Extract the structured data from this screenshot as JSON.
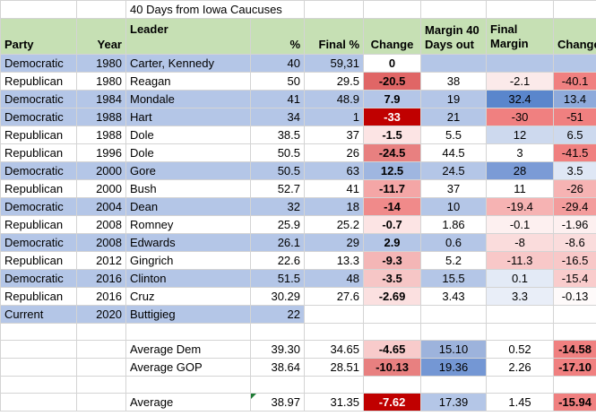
{
  "title": "40 Days from Iowa Caucuses",
  "headers": {
    "party": "Party",
    "year": "Year",
    "leader": "Leader",
    "pct": "%",
    "final_pct": "Final %",
    "change": "Change",
    "margin40": "Margin 40 Days out",
    "final_margin": "Final Margin",
    "change2": "Change"
  },
  "rows": [
    {
      "party": "Democratic",
      "year": "1980",
      "leader": "Carter, Kennedy",
      "pct": "40",
      "final_pct": "59,31",
      "change": "0",
      "margin40": "",
      "final_margin": "",
      "change2": ""
    },
    {
      "party": "Republican",
      "year": "1980",
      "leader": "Reagan",
      "pct": "50",
      "final_pct": "29.5",
      "change": "-20.5",
      "margin40": "38",
      "final_margin": "-2.1",
      "change2": "-40.1"
    },
    {
      "party": "Democratic",
      "year": "1984",
      "leader": "Mondale",
      "pct": "41",
      "final_pct": "48.9",
      "change": "7.9",
      "margin40": "19",
      "final_margin": "32.4",
      "change2": "13.4"
    },
    {
      "party": "Democratic",
      "year": "1988",
      "leader": "Hart",
      "pct": "34",
      "final_pct": "1",
      "change": "-33",
      "margin40": "21",
      "final_margin": "-30",
      "change2": "-51"
    },
    {
      "party": "Republican",
      "year": "1988",
      "leader": "Dole",
      "pct": "38.5",
      "final_pct": "37",
      "change": "-1.5",
      "margin40": "5.5",
      "final_margin": "12",
      "change2": "6.5"
    },
    {
      "party": "Republican",
      "year": "1996",
      "leader": "Dole",
      "pct": "50.5",
      "final_pct": "26",
      "change": "-24.5",
      "margin40": "44.5",
      "final_margin": "3",
      "change2": "-41.5"
    },
    {
      "party": "Democratic",
      "year": "2000",
      "leader": "Gore",
      "pct": "50.5",
      "final_pct": "63",
      "change": "12.5",
      "margin40": "24.5",
      "final_margin": "28",
      "change2": "3.5"
    },
    {
      "party": "Republican",
      "year": "2000",
      "leader": "Bush",
      "pct": "52.7",
      "final_pct": "41",
      "change": "-11.7",
      "margin40": "37",
      "final_margin": "11",
      "change2": "-26"
    },
    {
      "party": "Democratic",
      "year": "2004",
      "leader": "Dean",
      "pct": "32",
      "final_pct": "18",
      "change": "-14",
      "margin40": "10",
      "final_margin": "-19.4",
      "change2": "-29.4"
    },
    {
      "party": "Republican",
      "year": "2008",
      "leader": "Romney",
      "pct": "25.9",
      "final_pct": "25.2",
      "change": "-0.7",
      "margin40": "1.86",
      "final_margin": "-0.1",
      "change2": "-1.96"
    },
    {
      "party": "Democratic",
      "year": "2008",
      "leader": "Edwards",
      "pct": "26.1",
      "final_pct": "29",
      "change": "2.9",
      "margin40": "0.6",
      "final_margin": "-8",
      "change2": "-8.6"
    },
    {
      "party": "Republican",
      "year": "2012",
      "leader": "Gingrich",
      "pct": "22.6",
      "final_pct": "13.3",
      "change": "-9.3",
      "margin40": "5.2",
      "final_margin": "-11.3",
      "change2": "-16.5"
    },
    {
      "party": "Democratic",
      "year": "2016",
      "leader": "Clinton",
      "pct": "51.5",
      "final_pct": "48",
      "change": "-3.5",
      "margin40": "15.5",
      "final_margin": "0.1",
      "change2": "-15.4"
    },
    {
      "party": "Republican",
      "year": "2016",
      "leader": "Cruz",
      "pct": "30.29",
      "final_pct": "27.6",
      "change": "-2.69",
      "margin40": "3.43",
      "final_margin": "3.3",
      "change2": "-0.13"
    },
    {
      "party": "Current",
      "year": "2020",
      "leader": "Buttigieg",
      "pct": "22",
      "final_pct": "",
      "change": "",
      "margin40": "",
      "final_margin": "",
      "change2": ""
    }
  ],
  "cell_colors": [
    {
      "change": "#ffffff",
      "margin40": "",
      "final_margin": "",
      "change2": ""
    },
    {
      "change": "#e06666",
      "margin40": "#ffffff",
      "final_margin": "#fbeaea",
      "change2": "#f08080"
    },
    {
      "change": "#b4c6e7",
      "margin40": "#b4c6e7",
      "final_margin": "#5a86cc",
      "change2": "#8eaadb"
    },
    {
      "change": "#c00000",
      "margin40": "#b4c6e7",
      "final_margin": "#f08080",
      "change2": "#f08080"
    },
    {
      "change": "#fce4e4",
      "margin40": "#ffffff",
      "final_margin": "#cdd9ee",
      "change2": "#cdd9ee"
    },
    {
      "change": "#e88080",
      "margin40": "#ffffff",
      "final_margin": "#ffffff",
      "change2": "#f08080"
    },
    {
      "change": "#9fb6e0",
      "margin40": "#b4c6e7",
      "final_margin": "#7b9bd6",
      "change2": "#dfe7f5"
    },
    {
      "change": "#f4a6a6",
      "margin40": "#ffffff",
      "final_margin": "#ffffff",
      "change2": "#f6b3b3"
    },
    {
      "change": "#f08a8a",
      "margin40": "#b4c6e7",
      "final_margin": "#f6b3b3",
      "change2": "#f39c9c"
    },
    {
      "change": "#fce4e4",
      "margin40": "#ffffff",
      "final_margin": "#fdf0f0",
      "change2": "#fdf0f0"
    },
    {
      "change": "#b4c6e7",
      "margin40": "#b4c6e7",
      "final_margin": "#fadcdc",
      "change2": "#fadcdc"
    },
    {
      "change": "#f4b6b6",
      "margin40": "#ffffff",
      "final_margin": "#f8c8c8",
      "change2": "#f8c8c8"
    },
    {
      "change": "#f6c6c6",
      "margin40": "#b4c6e7",
      "final_margin": "#e3eaf6",
      "change2": "#f9cccc"
    },
    {
      "change": "#fbe0e0",
      "margin40": "#ffffff",
      "final_margin": "#e9eef8",
      "change2": "#fefafa"
    },
    {
      "change": "",
      "margin40": "",
      "final_margin": "",
      "change2": ""
    }
  ],
  "summary": [
    {
      "label": "Average Dem",
      "pct": "39.30",
      "final_pct": "34.65",
      "change": "-4.65",
      "margin40": "15.10",
      "final_margin": "0.52",
      "change2": "-14.58",
      "colors": {
        "change": "#f8cbcb",
        "margin40": "#9db3dc",
        "final_margin": "#ffffff",
        "change2": "#f08080"
      }
    },
    {
      "label": "Average GOP",
      "pct": "38.64",
      "final_pct": "28.51",
      "change": "-10.13",
      "margin40": "19.36",
      "final_margin": "2.26",
      "change2": "-17.10",
      "colors": {
        "change": "#e88080",
        "margin40": "#7497d4",
        "final_margin": "#ffffff",
        "change2": "#f08080"
      }
    },
    {
      "label": "Average",
      "pct": "38.97",
      "final_pct": "31.35",
      "change": "-7.62",
      "margin40": "17.39",
      "final_margin": "1.45",
      "change2": "-15.94",
      "colors": {
        "change": "#c00000",
        "margin40": "#b4c6e7",
        "final_margin": "#ffffff",
        "change2": "#f08080"
      }
    }
  ]
}
